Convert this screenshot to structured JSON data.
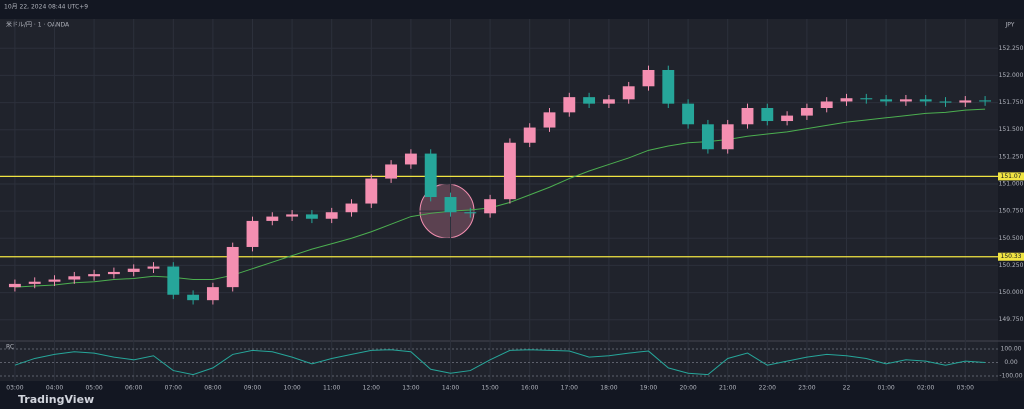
{
  "chart_data": {
    "type": "candlestick",
    "timestamp": "10月 22, 2024 08:44 UTC+9",
    "title": "米ドル/円 · 1 · OANDA",
    "currency": "JPY",
    "brand": "TradingView",
    "up_color": "#f48fb1",
    "down_color": "#26a69a",
    "grid": true,
    "categories": [
      "03:00",
      null,
      "04:00",
      null,
      "05:00",
      null,
      "06:00",
      null,
      "07:00",
      null,
      "08:00",
      null,
      "09:00",
      null,
      "10:00",
      null,
      "11:00",
      null,
      "12:00",
      null,
      "13:00",
      null,
      "14:00",
      null,
      "15:00",
      null,
      "16:00",
      null,
      "17:00",
      null,
      "18:00",
      null,
      "19:00",
      null,
      "20:00",
      null,
      "21:00",
      null,
      "22:00",
      null,
      "23:00",
      null,
      "22",
      null,
      "01:00",
      null,
      "02:00",
      null,
      "03:00",
      null
    ],
    "open": [
      150.05,
      150.08,
      150.1,
      150.12,
      150.15,
      150.17,
      150.19,
      150.22,
      150.24,
      149.98,
      149.93,
      150.05,
      150.42,
      150.66,
      150.7,
      150.72,
      150.68,
      150.74,
      150.82,
      151.05,
      151.18,
      151.28,
      150.88,
      150.74,
      150.73,
      150.86,
      151.38,
      151.52,
      151.66,
      151.8,
      151.74,
      151.78,
      151.9,
      152.05,
      151.74,
      151.55,
      151.32,
      151.55,
      151.7,
      151.58,
      151.63,
      151.7,
      151.76,
      151.79,
      151.78,
      151.76,
      151.78,
      151.76,
      151.75,
      151.77
    ],
    "high": [
      150.12,
      150.14,
      150.16,
      150.19,
      150.21,
      150.23,
      150.26,
      150.28,
      150.28,
      150.02,
      150.09,
      150.46,
      150.7,
      150.74,
      150.76,
      150.76,
      150.78,
      150.86,
      151.09,
      151.22,
      151.32,
      151.32,
      150.92,
      150.78,
      150.9,
      151.42,
      151.56,
      151.7,
      151.84,
      151.84,
      151.82,
      151.94,
      152.09,
      152.09,
      151.78,
      151.59,
      151.59,
      151.74,
      151.74,
      151.67,
      151.74,
      151.8,
      151.83,
      151.83,
      151.82,
      151.82,
      151.82,
      151.8,
      151.81,
      151.81
    ],
    "low": [
      150.01,
      150.04,
      150.06,
      150.08,
      150.11,
      150.13,
      150.15,
      150.18,
      149.94,
      149.89,
      149.89,
      150.01,
      150.38,
      150.62,
      150.66,
      150.64,
      150.64,
      150.7,
      150.78,
      151.01,
      151.14,
      150.84,
      150.7,
      150.69,
      150.69,
      150.82,
      151.34,
      151.48,
      151.62,
      151.7,
      151.7,
      151.74,
      151.86,
      151.7,
      151.51,
      151.28,
      151.28,
      151.51,
      151.54,
      151.54,
      151.59,
      151.66,
      151.72,
      151.74,
      151.72,
      151.72,
      151.72,
      151.71,
      151.71,
      151.72
    ],
    "close": [
      150.08,
      150.1,
      150.12,
      150.15,
      150.17,
      150.19,
      150.22,
      150.24,
      149.98,
      149.93,
      150.05,
      150.42,
      150.66,
      150.7,
      150.72,
      150.68,
      150.74,
      150.82,
      151.05,
      151.18,
      151.28,
      150.88,
      150.74,
      150.73,
      150.86,
      151.38,
      151.52,
      151.66,
      151.8,
      151.74,
      151.78,
      151.9,
      152.05,
      151.74,
      151.55,
      151.32,
      151.55,
      151.7,
      151.58,
      151.63,
      151.7,
      151.76,
      151.79,
      151.78,
      151.76,
      151.78,
      151.76,
      151.75,
      151.77,
      151.76
    ],
    "ma_color": "#4caf50",
    "ma_values": [
      150.05,
      150.06,
      150.07,
      150.09,
      150.1,
      150.12,
      150.13,
      150.15,
      150.14,
      150.12,
      150.12,
      150.16,
      150.22,
      150.28,
      150.34,
      150.4,
      150.45,
      150.5,
      150.56,
      150.63,
      150.7,
      150.73,
      150.75,
      150.76,
      150.78,
      150.83,
      150.9,
      150.97,
      151.05,
      151.12,
      151.18,
      151.24,
      151.31,
      151.35,
      151.38,
      151.39,
      151.41,
      151.44,
      151.46,
      151.48,
      151.51,
      151.54,
      151.57,
      151.59,
      151.61,
      151.63,
      151.65,
      151.66,
      151.68,
      151.69
    ],
    "hline_color": "#f0e442",
    "hlines": [
      151.07,
      150.33
    ],
    "ylim": [
      149.6,
      152.4
    ],
    "yticks": [
      {
        "value": 149.75,
        "label": "149.750"
      },
      {
        "value": 150,
        "label": "150.000"
      },
      {
        "value": 150.25,
        "label": "150.250"
      },
      {
        "value": 150.5,
        "label": "150.500"
      },
      {
        "value": 150.75,
        "label": "150.750"
      },
      {
        "value": 151,
        "label": "151.000"
      },
      {
        "value": 151.25,
        "label": "151.250"
      },
      {
        "value": 151.5,
        "label": "151.500"
      },
      {
        "value": 151.75,
        "label": "151.750"
      },
      {
        "value": 152,
        "label": "152.000"
      },
      {
        "value": 152.25,
        "label": "152.250"
      }
    ],
    "oscillator": {
      "name": "RCI",
      "color": "#26a69a",
      "ylim": [
        -130,
        130
      ],
      "yticks": [
        {
          "value": 100,
          "label": "100.00"
        },
        {
          "value": 0,
          "label": "0.00"
        },
        {
          "value": -100,
          "label": "-100.00"
        }
      ],
      "values": [
        -20,
        30,
        60,
        80,
        70,
        40,
        20,
        50,
        -60,
        -90,
        -40,
        60,
        90,
        80,
        40,
        -10,
        30,
        60,
        90,
        95,
        80,
        -50,
        -80,
        -60,
        20,
        90,
        95,
        90,
        85,
        40,
        50,
        70,
        85,
        -40,
        -80,
        -90,
        30,
        70,
        -20,
        10,
        40,
        60,
        50,
        30,
        -10,
        20,
        10,
        -20,
        10,
        0
      ]
    }
  }
}
